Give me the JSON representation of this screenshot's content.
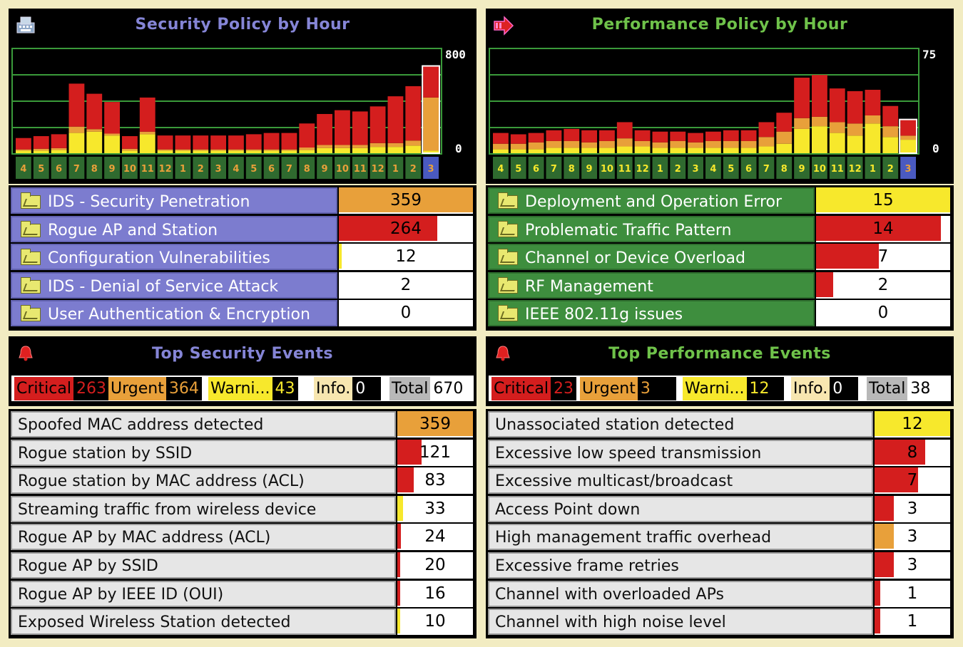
{
  "colors": {
    "critical": "#d41e1e",
    "urgent": "#e8a03a",
    "warning": "#f7e82c",
    "info": "#f7e6b0",
    "total": "#b8b8b8",
    "grid": "#3a9a3a",
    "hour_bg": "#2f6a2f",
    "hour_text_sec": "#e8a03a",
    "hour_text_perf": "#f7e82c",
    "current_bg": "#4a5ac0"
  },
  "security_policy": {
    "title": "Security Policy by Hour",
    "icon": "keyboard-icon",
    "scale_max": "800",
    "scale_min": "0",
    "chart_data": {
      "type": "bar",
      "stacked": true,
      "ylim": [
        0,
        800
      ],
      "categories": [
        "4",
        "5",
        "6",
        "7",
        "8",
        "9",
        "10",
        "11",
        "12",
        "1",
        "2",
        "3",
        "4",
        "5",
        "6",
        "7",
        "8",
        "9",
        "10",
        "11",
        "12",
        "1",
        "2",
        "3"
      ],
      "series": [
        {
          "name": "Warning",
          "values": [
            20,
            20,
            25,
            160,
            170,
            140,
            20,
            150,
            20,
            20,
            20,
            20,
            20,
            20,
            20,
            20,
            25,
            40,
            40,
            40,
            50,
            50,
            60,
            20
          ]
        },
        {
          "name": "Urgent",
          "values": [
            10,
            15,
            15,
            50,
            20,
            15,
            15,
            20,
            10,
            10,
            10,
            10,
            10,
            10,
            10,
            10,
            20,
            25,
            25,
            25,
            30,
            30,
            40,
            420
          ]
        },
        {
          "name": "Critical",
          "values": [
            90,
            100,
            110,
            340,
            280,
            250,
            100,
            270,
            110,
            110,
            110,
            110,
            110,
            120,
            130,
            130,
            190,
            245,
            275,
            265,
            290,
            370,
            430,
            250
          ]
        }
      ],
      "current_index": 23
    },
    "categories": [
      {
        "label": "IDS - Security Penetration",
        "value": "359",
        "fill": 1.0,
        "color": "#e8a03a"
      },
      {
        "label": "Rogue AP and Station",
        "value": "264",
        "fill": 0.735,
        "color": "#d41e1e"
      },
      {
        "label": "Configuration Vulnerabilities",
        "value": "12",
        "fill": 0.02,
        "color": "#f7e82c"
      },
      {
        "label": "IDS - Denial of Service Attack",
        "value": "2",
        "fill": 0.0,
        "color": "#d41e1e"
      },
      {
        "label": "User Authentication & Encryption",
        "value": "0",
        "fill": 0.0,
        "color": "#d41e1e"
      }
    ]
  },
  "performance_policy": {
    "title": "Performance Policy by Hour",
    "icon": "arrow-icon",
    "scale_max": "75",
    "scale_min": "0",
    "chart_data": {
      "type": "bar",
      "stacked": true,
      "ylim": [
        0,
        75
      ],
      "categories": [
        "4",
        "5",
        "6",
        "7",
        "8",
        "9",
        "10",
        "11",
        "12",
        "1",
        "2",
        "3",
        "4",
        "5",
        "6",
        "7",
        "8",
        "9",
        "10",
        "11",
        "12",
        "1",
        "2",
        "3"
      ],
      "series": [
        {
          "name": "Warning",
          "values": [
            3,
            3,
            3,
            4,
            4,
            4,
            4,
            5,
            5,
            4,
            4,
            4,
            4,
            4,
            4,
            5,
            7,
            18,
            20,
            15,
            13,
            22,
            12,
            10
          ]
        },
        {
          "name": "Urgent",
          "values": [
            4,
            4,
            5,
            5,
            5,
            4,
            5,
            6,
            4,
            4,
            5,
            4,
            5,
            5,
            5,
            7,
            9,
            8,
            7,
            8,
            9,
            6,
            8,
            3
          ]
        },
        {
          "name": "Critical",
          "values": [
            8,
            7,
            7,
            8,
            9,
            9,
            8,
            12,
            8,
            8,
            7,
            7,
            7,
            8,
            8,
            11,
            14,
            30,
            31,
            25,
            24,
            19,
            15,
            12
          ]
        }
      ],
      "current_index": 23
    },
    "categories": [
      {
        "label": "Deployment and Operation Error",
        "value": "15",
        "fill": 1.0,
        "color": "#f7e82c"
      },
      {
        "label": "Problematic Traffic Pattern",
        "value": "14",
        "fill": 0.93,
        "color": "#d41e1e"
      },
      {
        "label": "Channel or Device Overload",
        "value": "7",
        "fill": 0.47,
        "color": "#d41e1e"
      },
      {
        "label": "RF Management",
        "value": "2",
        "fill": 0.13,
        "color": "#d41e1e"
      },
      {
        "label": "IEEE 802.11g issues",
        "value": "0",
        "fill": 0.0,
        "color": "#d41e1e"
      }
    ]
  },
  "security_events": {
    "title": "Top Security Events",
    "icon": "bell-icon",
    "severity": {
      "critical_label": "Critical",
      "critical_count": "263",
      "urgent_label": "Urgent",
      "urgent_count": "364",
      "warning_label": "Warni...",
      "warning_count": "43",
      "info_label": "Info.",
      "info_count": "0",
      "total_label": "Total",
      "total_count": "670"
    },
    "events": [
      {
        "label": "Spoofed MAC address detected",
        "value": "359",
        "fill": 1.0,
        "color": "#e8a03a"
      },
      {
        "label": "Rogue station by SSID",
        "value": "121",
        "fill": 0.32,
        "color": "#d41e1e"
      },
      {
        "label": "Rogue station by MAC address (ACL)",
        "value": "83",
        "fill": 0.22,
        "color": "#d41e1e"
      },
      {
        "label": "Streaming traffic from wireless device",
        "value": "33",
        "fill": 0.08,
        "color": "#f7e82c"
      },
      {
        "label": "Rogue AP by MAC address (ACL)",
        "value": "24",
        "fill": 0.05,
        "color": "#d41e1e"
      },
      {
        "label": "Rogue AP by SSID",
        "value": "20",
        "fill": 0.04,
        "color": "#d41e1e"
      },
      {
        "label": "Rogue AP by IEEE ID (OUI)",
        "value": "16",
        "fill": 0.03,
        "color": "#d41e1e"
      },
      {
        "label": "Exposed Wireless Station detected",
        "value": "10",
        "fill": 0.02,
        "color": "#f7e82c"
      }
    ]
  },
  "performance_events": {
    "title": "Top Performance Events",
    "icon": "bell-icon",
    "severity": {
      "critical_label": "Critical",
      "critical_count": "23",
      "urgent_label": "Urgent",
      "urgent_count": "3",
      "warning_label": "Warni...",
      "warning_count": "12",
      "info_label": "Info.",
      "info_count": "0",
      "total_label": "Total",
      "total_count": "38"
    },
    "events": [
      {
        "label": "Unassociated station detected",
        "value": "12",
        "fill": 1.0,
        "color": "#f7e82c"
      },
      {
        "label": "Excessive low speed transmission",
        "value": "8",
        "fill": 0.67,
        "color": "#d41e1e"
      },
      {
        "label": "Excessive multicast/broadcast",
        "value": "7",
        "fill": 0.58,
        "color": "#d41e1e"
      },
      {
        "label": "Access Point down",
        "value": "3",
        "fill": 0.25,
        "color": "#d41e1e"
      },
      {
        "label": "High management traffic overhead",
        "value": "3",
        "fill": 0.25,
        "color": "#e8a03a"
      },
      {
        "label": "Excessive frame retries",
        "value": "3",
        "fill": 0.25,
        "color": "#d41e1e"
      },
      {
        "label": "Channel with overloaded APs",
        "value": "1",
        "fill": 0.08,
        "color": "#d41e1e"
      },
      {
        "label": "Channel with high noise level",
        "value": "1",
        "fill": 0.08,
        "color": "#d41e1e"
      }
    ]
  }
}
